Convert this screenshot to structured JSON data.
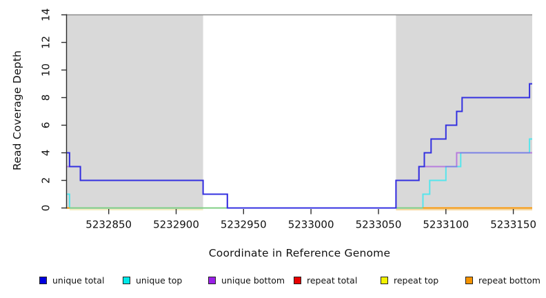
{
  "chart_data": {
    "type": "line",
    "subtype": "step-after",
    "title": "",
    "xlabel": "Coordinate in Reference Genome",
    "ylabel": "Read Coverage Depth",
    "xlim": [
      5232819,
      5233164
    ],
    "ylim": [
      0,
      14
    ],
    "xticks": [
      5232850,
      5232900,
      5232950,
      5233000,
      5233050,
      5233100,
      5233150
    ],
    "yticks": [
      0,
      2,
      4,
      6,
      8,
      10,
      12,
      14
    ],
    "grid": false,
    "legend_position": "bottom",
    "repeat_regions": [
      {
        "from": 5232819,
        "to": 5232920
      },
      {
        "from": 5233063,
        "to": 5233164
      }
    ],
    "region_fill": "#d9d9d9",
    "top_boundary": {
      "y": 14,
      "color": "#8c8c8c"
    },
    "series": [
      {
        "name": "repeat total",
        "color": "#e60000",
        "points": [
          [
            5232819,
            0
          ],
          [
            5233164,
            0
          ]
        ]
      },
      {
        "name": "repeat top",
        "color": "#f0f000",
        "points": [
          [
            5232819,
            0
          ],
          [
            5233164,
            0
          ]
        ]
      },
      {
        "name": "repeat bottom",
        "color": "#ff9800",
        "points": [
          [
            5232819,
            0
          ],
          [
            5233164,
            0
          ]
        ]
      },
      {
        "name": "unique top",
        "color": "#55e5ec",
        "points": [
          [
            5232819,
            1
          ],
          [
            5232821,
            0
          ],
          [
            5233083,
            1
          ],
          [
            5233088,
            2
          ],
          [
            5233100,
            3
          ],
          [
            5233111,
            4
          ],
          [
            5233162,
            5
          ],
          [
            5233164,
            5
          ]
        ]
      },
      {
        "name": "unique bottom",
        "color": "#9a30e0",
        "opacity": 0.55,
        "points": [
          [
            5232819,
            3
          ],
          [
            5232829,
            2
          ],
          [
            5232920,
            1
          ],
          [
            5232938,
            0
          ],
          [
            5233063,
            2
          ],
          [
            5233080,
            3
          ],
          [
            5233108,
            4
          ],
          [
            5233164,
            4
          ]
        ]
      },
      {
        "name": "unique total",
        "color": "#3330e0",
        "points": [
          [
            5232819,
            4
          ],
          [
            5232821,
            3
          ],
          [
            5232829,
            2
          ],
          [
            5232920,
            1
          ],
          [
            5232938,
            0
          ],
          [
            5233063,
            2
          ],
          [
            5233080,
            3
          ],
          [
            5233084,
            4
          ],
          [
            5233089,
            5
          ],
          [
            5233100,
            6
          ],
          [
            5233108,
            7
          ],
          [
            5233112,
            8
          ],
          [
            5233162,
            9
          ],
          [
            5233164,
            9
          ]
        ]
      }
    ],
    "baseline_overlays": [
      {
        "from": 5232819,
        "to": 5232821,
        "color": "#ff9800"
      },
      {
        "from": 5232821,
        "to": 5232938,
        "color": "#80cf84"
      },
      {
        "from": 5233063,
        "to": 5233083,
        "color": "#80cf84"
      },
      {
        "from": 5233083,
        "to": 5233164,
        "color": "#ff9800"
      }
    ],
    "sub_baseline_stripes": [
      {
        "from": 5232821,
        "to": 5232920,
        "color": "#f4eec4"
      },
      {
        "from": 5233063,
        "to": 5233164,
        "color": "#f8d9a0"
      }
    ],
    "legend": [
      {
        "label": "unique total",
        "color": "#0000e0"
      },
      {
        "label": "unique top",
        "color": "#00e8e8"
      },
      {
        "label": "unique bottom",
        "color": "#9b1fe8"
      },
      {
        "label": "repeat total",
        "color": "#e80000"
      },
      {
        "label": "repeat top",
        "color": "#f2f200"
      },
      {
        "label": "repeat bottom",
        "color": "#f59300"
      }
    ]
  }
}
